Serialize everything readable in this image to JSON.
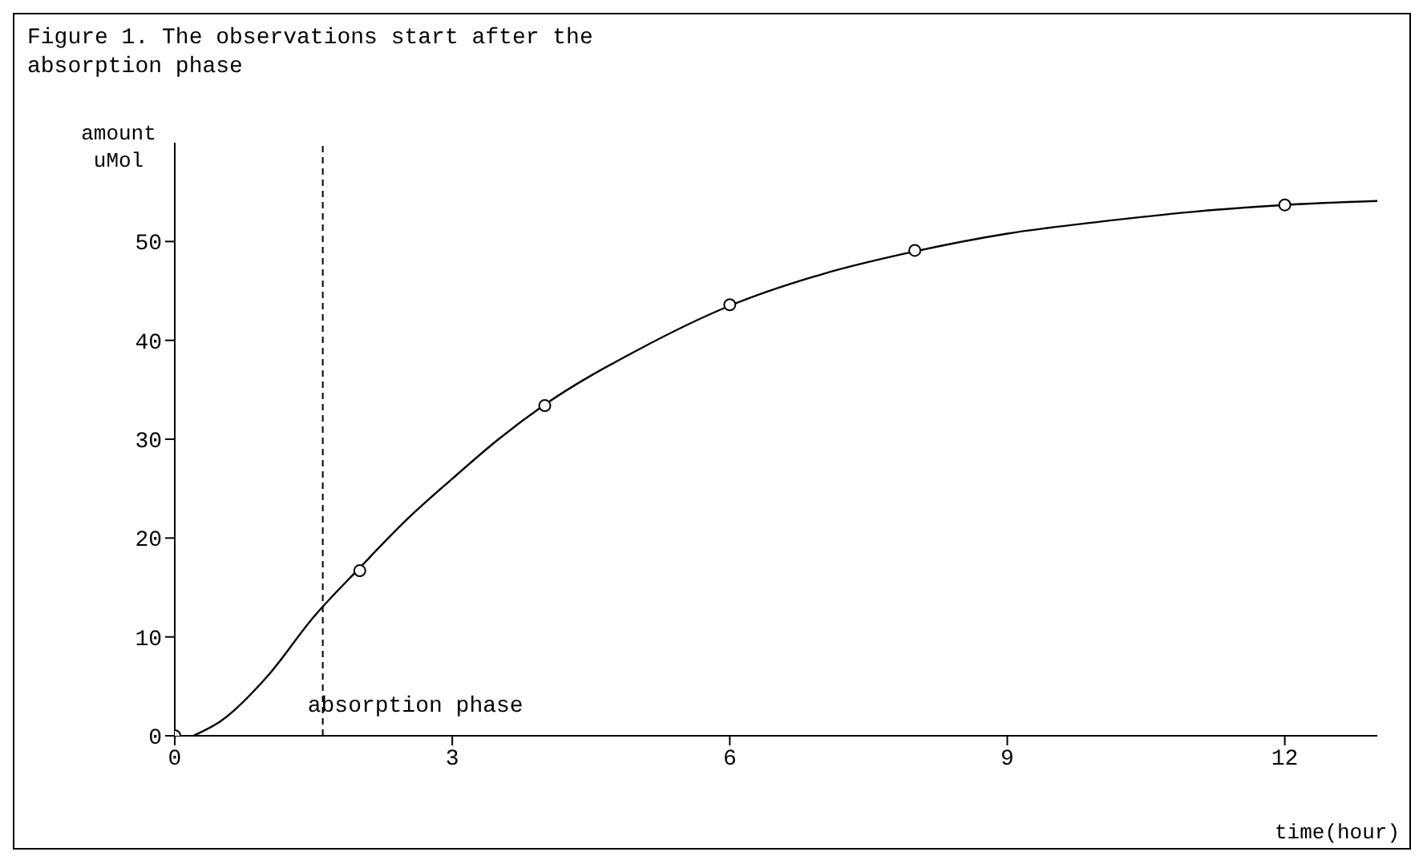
{
  "chart_data": {
    "type": "line",
    "title": "Figure 1. The observations start after the absorption phase",
    "xlabel": "time(hour)",
    "ylabel": "amount uMol",
    "xlim": [
      0,
      13
    ],
    "xticks": [
      0,
      3,
      6,
      9,
      12
    ],
    "ylim": [
      0,
      60
    ],
    "yticks": [
      0,
      10,
      20,
      30,
      40,
      50
    ],
    "grid": false,
    "legend": false,
    "series": [
      {
        "color": "#000000",
        "marker": "none",
        "line_style": "solid",
        "x": [
          0.2,
          0.5,
          1,
          1.5,
          2,
          2.5,
          3,
          3.5,
          4,
          5,
          6,
          7,
          8,
          9,
          10,
          11,
          12,
          13
        ],
        "values": [
          0,
          1.5,
          6,
          12,
          17,
          21.8,
          26,
          30,
          33.5,
          39,
          43.5,
          46.7,
          49,
          50.8,
          52,
          53,
          53.7,
          54.1
        ]
      },
      {
        "type": "scatter",
        "color": "#000000",
        "marker": "circle",
        "x": [
          0,
          2,
          4,
          6,
          8,
          12
        ],
        "values": [
          0,
          16.7,
          33.4,
          43.6,
          49.1,
          53.7
        ]
      }
    ],
    "ref_lines": [
      {
        "axis": "x",
        "value": 1.6,
        "label": "absorption phase",
        "line_style": "dashed"
      }
    ]
  }
}
